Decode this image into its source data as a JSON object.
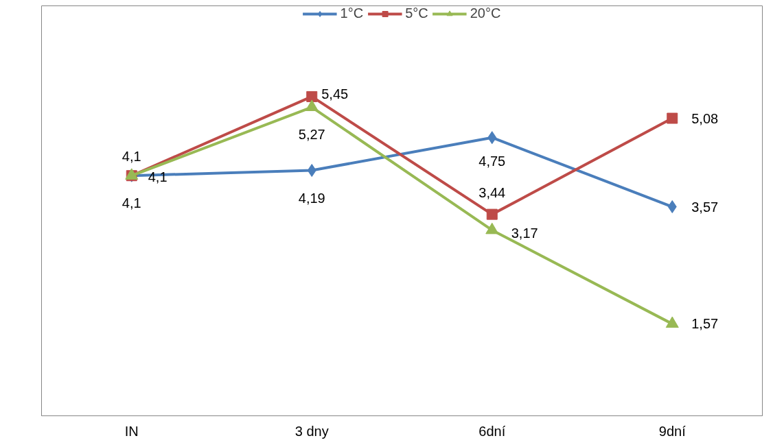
{
  "chart_data": {
    "type": "line",
    "categories": [
      "IN",
      "3 dny",
      "6dní",
      "9dní"
    ],
    "ylim": [
      0,
      7
    ],
    "legend": "top",
    "grid": false,
    "tick_labels": "x",
    "series": [
      {
        "name": "1°C",
        "color": "#4a7ebb",
        "marker": "diamond",
        "values": [
          4.1,
          4.19,
          4.75,
          3.57
        ],
        "value_labels": [
          "4,1",
          "4,19",
          "4,75",
          "3,57"
        ]
      },
      {
        "name": "5°C",
        "color": "#be4b48",
        "marker": "square",
        "values": [
          4.1,
          5.45,
          3.44,
          5.08
        ],
        "value_labels": [
          "4,1",
          "5,45",
          "3,44",
          "5,08"
        ]
      },
      {
        "name": "20°C",
        "color": "#98b954",
        "marker": "triangle",
        "values": [
          4.1,
          5.27,
          3.17,
          1.57
        ],
        "value_labels": [
          "4,1",
          "5,27",
          "3,17",
          "1,57"
        ]
      }
    ]
  }
}
